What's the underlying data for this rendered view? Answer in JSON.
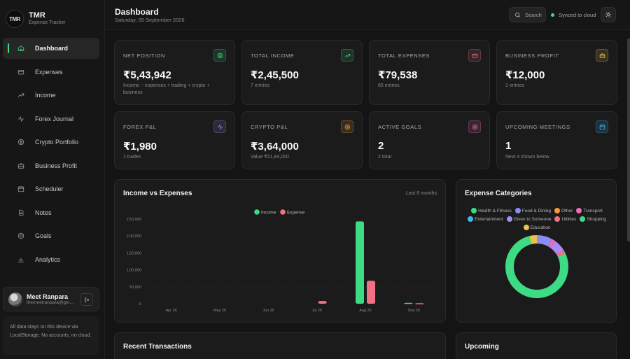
{
  "brand": {
    "logo": "TMR",
    "name": "TMR",
    "subtitle": "Expense Tracker"
  },
  "sidebar": {
    "items": [
      {
        "label": "Dashboard",
        "icon": "home-icon",
        "active": true
      },
      {
        "label": "Expenses",
        "icon": "wallet-icon"
      },
      {
        "label": "Income",
        "icon": "trending-up-icon"
      },
      {
        "label": "Forex Journal",
        "icon": "activity-icon"
      },
      {
        "label": "Crypto Portfolio",
        "icon": "bitcoin-icon"
      },
      {
        "label": "Business Profit",
        "icon": "briefcase-icon"
      },
      {
        "label": "Scheduler",
        "icon": "calendar-icon"
      },
      {
        "label": "Notes",
        "icon": "file-text-icon"
      },
      {
        "label": "Goals",
        "icon": "target-icon"
      },
      {
        "label": "Analytics",
        "icon": "bar-chart-icon"
      }
    ],
    "user": {
      "name": "Meet Ranpara",
      "email": "themeetranpara@gm..."
    },
    "note": "All data stays on this device via LocalStorage. No accounts, no cloud."
  },
  "header": {
    "title": "Dashboard",
    "date": "Saturday, 05 September 2026",
    "search_label": "Search",
    "sync_status": "Synced to cloud"
  },
  "stats": [
    {
      "label": "NET POSITION",
      "value": "₹5,43,942",
      "sub": "Income − expenses + trading + crypto + business",
      "icon": "target-icon",
      "color": "#3ddc84"
    },
    {
      "label": "TOTAL INCOME",
      "value": "₹2,45,500",
      "sub": "7 entries",
      "icon": "trending-up-icon",
      "color": "#3ddc84"
    },
    {
      "label": "TOTAL EXPENSES",
      "value": "₹79,538",
      "sub": "65 entries",
      "icon": "wallet-icon",
      "color": "#f07183"
    },
    {
      "label": "BUSINESS PROFIT",
      "value": "₹12,000",
      "sub": "1 entries",
      "icon": "briefcase-icon",
      "color": "#e8c44a"
    },
    {
      "label": "FOREX P&L",
      "value": "₹1,980",
      "sub": "1 trades",
      "icon": "activity-icon",
      "color": "#8b8cf5"
    },
    {
      "label": "CRYPTO P&L",
      "value": "₹3,64,000",
      "sub": "Value ₹21,84,000",
      "icon": "bitcoin-icon",
      "color": "#f39c34"
    },
    {
      "label": "ACTIVE GOALS",
      "value": "2",
      "sub": "2 total",
      "icon": "target-icon",
      "color": "#e96fb6"
    },
    {
      "label": "UPCOMING MEETINGS",
      "value": "1",
      "sub": "Next 4 shown below",
      "icon": "calendar-icon",
      "color": "#3fb8f5"
    }
  ],
  "income_chart": {
    "title": "Income vs Expenses",
    "period": "Last 6 months"
  },
  "chart_data": [
    {
      "type": "bar",
      "title": "Income vs Expenses",
      "categories": [
        "Apr 26",
        "May 26",
        "Jun 26",
        "Jul 26",
        "Aug 26",
        "Sep 26"
      ],
      "series": [
        {
          "name": "Income",
          "color": "#3ddc84",
          "values": [
            0,
            0,
            0,
            0,
            243000,
            2500
          ]
        },
        {
          "name": "Expense",
          "color": "#f07183",
          "values": [
            0,
            0,
            0,
            8000,
            68000,
            1500
          ]
        }
      ],
      "yticks": [
        "2,50,000",
        "2,00,000",
        "1,50,000",
        "1,00,000",
        "50,000",
        "0"
      ],
      "ylim": [
        0,
        250000
      ],
      "legend": "top-center",
      "grid": true
    },
    {
      "type": "pie",
      "title": "Expense Categories",
      "labels": [
        "Health & Fitness",
        "Food & Dining",
        "Other",
        "Transport",
        "Entertainment",
        "Given to Someone",
        "Utilities",
        "Shopping",
        "Education"
      ],
      "colors": [
        "#3ddc84",
        "#8b8cf5",
        "#f39c34",
        "#e96fb6",
        "#3fb8f5",
        "#a98bf5",
        "#f07183",
        "#3ddc84",
        "#e8c44a"
      ],
      "values": [
        0,
        8,
        0,
        2,
        0,
        6,
        2,
        78,
        4
      ],
      "legend": "top"
    }
  ],
  "categories_panel": {
    "title": "Expense Categories"
  },
  "recent": {
    "title": "Recent Transactions"
  },
  "upcoming": {
    "title": "Upcoming"
  }
}
